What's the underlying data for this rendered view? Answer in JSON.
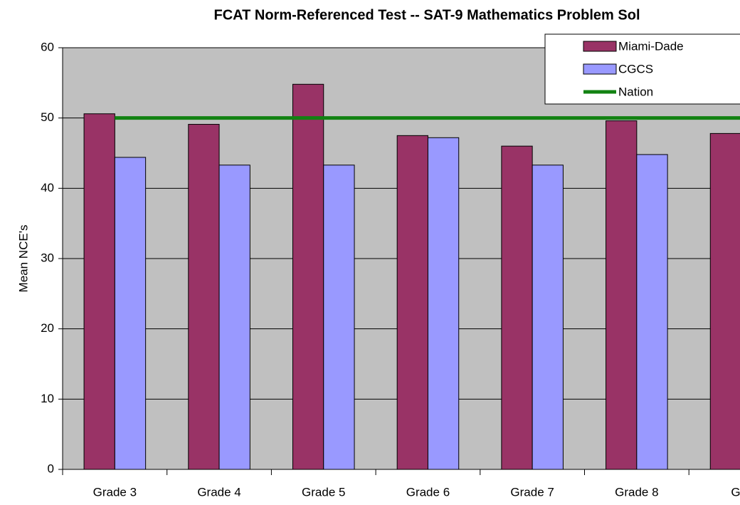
{
  "chart_data": {
    "type": "bar",
    "title": "FCAT Norm-Referenced Test -- SAT-9 Mathematics Problem Sol",
    "y_label": "Mean NCE's",
    "categories": [
      "Grade 3",
      "Grade 4",
      "Grade 5",
      "Grade 6",
      "Grade 7",
      "Grade 8",
      "Gra"
    ],
    "series": [
      {
        "name": "Miami-Dade",
        "color": "#993366",
        "type": "bar",
        "values": [
          50.6,
          49.1,
          54.8,
          47.5,
          46.0,
          49.6,
          47.8
        ]
      },
      {
        "name": "CGCS",
        "color": "#9999ff",
        "type": "bar",
        "values": [
          44.4,
          43.3,
          43.3,
          47.2,
          43.3,
          44.8,
          null
        ]
      },
      {
        "name": "Nation",
        "color": "#128212",
        "type": "line",
        "values": [
          50,
          50,
          50,
          50,
          50,
          50,
          50
        ]
      }
    ],
    "ylim": [
      0,
      60
    ],
    "yticks": [
      0,
      10,
      20,
      30,
      40,
      50,
      60
    ],
    "grid": true,
    "legend": "top-right"
  }
}
